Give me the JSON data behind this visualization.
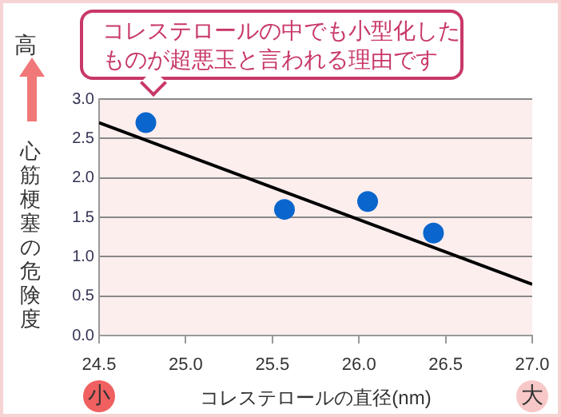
{
  "chart_data": {
    "type": "scatter",
    "xlabel": "コレステロールの直径(nm)",
    "ylabel": "心筋梗塞の危険度",
    "annotations": [
      "コレステロールの中でも小型化したものが超悪玉と言われる理由です",
      "高",
      "小",
      "大"
    ],
    "series": [
      {
        "color": "#0a66cc",
        "x": [
          24.77,
          25.57,
          26.05,
          26.43
        ],
        "values": [
          2.7,
          1.6,
          1.7,
          1.3
        ]
      },
      {
        "type": "line",
        "marker": "none",
        "color": "#000000",
        "x": [
          24.5,
          27.0
        ],
        "values": [
          2.7,
          0.65
        ]
      }
    ],
    "xlim": [
      24.5,
      27.0
    ],
    "xticks": [
      {
        "value": 24.5,
        "label": "24.5"
      },
      {
        "value": 25.0,
        "label": "25.0"
      },
      {
        "value": 25.5,
        "label": "25.5"
      },
      {
        "value": 26.0,
        "label": "26.0"
      },
      {
        "value": 26.5,
        "label": "26.5"
      },
      {
        "value": 27.0,
        "label": "27.0"
      }
    ],
    "ylim": [
      0,
      3.0
    ],
    "yticks": [
      {
        "value": 0,
        "label": "0.0"
      },
      {
        "value": 0.5,
        "label": "0.5"
      },
      {
        "value": 1.0,
        "label": "1.0"
      },
      {
        "value": 1.5,
        "label": "1.5"
      },
      {
        "value": 2.0,
        "label": "2.0"
      },
      {
        "value": 2.5,
        "label": "2.5"
      },
      {
        "value": 3.0,
        "label": "3.0"
      }
    ],
    "grid": "y",
    "legend": false,
    "marker": "circle",
    "line_style": "solid"
  }
}
